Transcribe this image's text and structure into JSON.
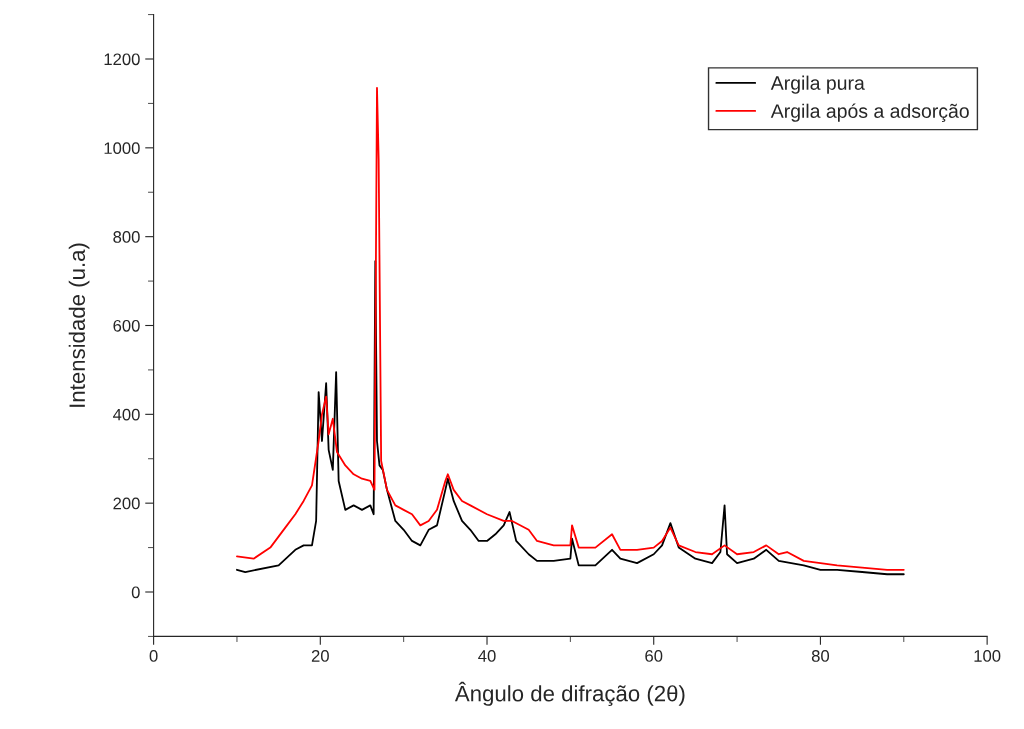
{
  "chart_data": {
    "type": "line",
    "xlabel": "Ângulo de difração (2θ)",
    "ylabel": "Intensidade (u.a)",
    "xlim": [
      0,
      100
    ],
    "xticks": [
      0,
      20,
      40,
      60,
      80,
      100
    ],
    "ylim": [
      -100,
      1300
    ],
    "yticks": [
      0,
      200,
      400,
      600,
      800,
      1000,
      1200
    ],
    "grid": false,
    "legend": "top right",
    "marker": "none",
    "line_style": "solid",
    "series": [
      {
        "name": "Argila pura",
        "color": "#000000",
        "x": [
          10,
          11,
          15,
          17,
          18,
          19,
          19.5,
          19.8,
          20.2,
          20.7,
          21,
          21.5,
          21.9,
          22.2,
          23,
          24,
          25,
          26,
          26.4,
          26.6,
          26.8,
          27.1,
          27.5,
          28,
          29,
          30,
          31,
          32,
          33,
          34,
          35,
          35.3,
          36,
          37,
          38,
          39,
          40,
          41,
          42,
          42.7,
          43.5,
          45,
          46,
          48,
          50,
          50.2,
          51,
          53,
          55,
          56,
          58,
          60,
          61,
          62,
          63,
          65,
          67,
          68,
          68.5,
          68.8,
          70,
          72,
          73.5,
          75,
          78,
          80,
          82,
          85,
          88,
          90
        ],
        "values": [
          50,
          45,
          60,
          95,
          105,
          105,
          160,
          450,
          340,
          470,
          320,
          275,
          495,
          250,
          185,
          195,
          185,
          195,
          175,
          745,
          340,
          285,
          275,
          230,
          160,
          140,
          115,
          105,
          140,
          150,
          230,
          255,
          205,
          160,
          140,
          115,
          115,
          130,
          150,
          180,
          115,
          85,
          70,
          70,
          75,
          120,
          60,
          60,
          95,
          75,
          65,
          85,
          105,
          155,
          100,
          75,
          65,
          90,
          195,
          85,
          65,
          75,
          95,
          70,
          60,
          50,
          50,
          45,
          40,
          40
        ]
      },
      {
        "name": "Argila após a adsorção",
        "color": "#ff0000",
        "x": [
          10,
          12,
          14,
          16,
          17,
          18,
          19,
          19.8,
          20.2,
          20.7,
          21,
          21.5,
          22,
          23,
          24,
          25,
          26,
          26.5,
          26.8,
          27.0,
          27.3,
          28,
          29,
          30,
          31,
          32,
          33,
          34,
          35,
          35.3,
          36,
          37,
          38,
          40,
          42,
          43,
          45,
          46,
          48,
          50,
          50.2,
          51,
          53,
          55,
          56,
          58,
          60,
          61,
          62,
          63,
          65,
          67,
          68.5,
          70,
          72,
          73.5,
          75,
          76,
          78,
          80,
          82,
          85,
          88,
          90
        ],
        "values": [
          80,
          75,
          100,
          150,
          175,
          205,
          240,
          340,
          400,
          440,
          355,
          390,
          315,
          285,
          265,
          255,
          250,
          230,
          1135,
          975,
          295,
          230,
          195,
          185,
          175,
          150,
          160,
          185,
          250,
          265,
          230,
          205,
          195,
          175,
          160,
          160,
          140,
          115,
          105,
          105,
          150,
          100,
          100,
          130,
          95,
          95,
          100,
          115,
          145,
          105,
          90,
          85,
          105,
          85,
          90,
          105,
          85,
          90,
          70,
          65,
          60,
          55,
          50,
          50
        ]
      }
    ]
  }
}
